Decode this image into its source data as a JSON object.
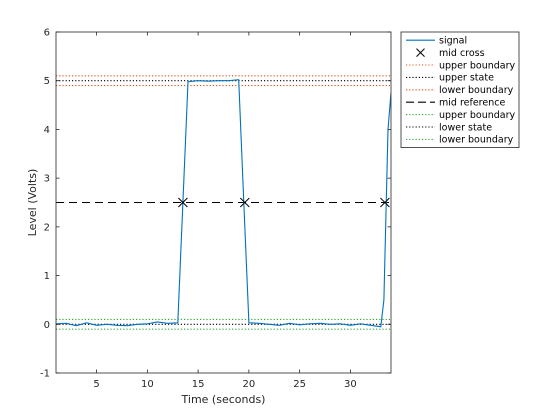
{
  "chart_data": {
    "type": "line",
    "xlabel": "Time (seconds)",
    "ylabel": "Level (Volts)",
    "xlim": [
      1,
      34
    ],
    "ylim": [
      -1,
      6
    ],
    "xticks": [
      5,
      10,
      15,
      20,
      25,
      30
    ],
    "yticks": [
      -1,
      0,
      1,
      2,
      3,
      4,
      5,
      6
    ],
    "grid": false,
    "legend_position": "outside-top-right",
    "signal": {
      "x": [
        1,
        2,
        3,
        4,
        5,
        6,
        7,
        8,
        9,
        10,
        11,
        12,
        13,
        13.5,
        14,
        15,
        16,
        17,
        18,
        19,
        19.5,
        20,
        21,
        22,
        23,
        24,
        25,
        26,
        27,
        28,
        29,
        30,
        31,
        32,
        33,
        33.3,
        33.7,
        34
      ],
      "y": [
        0.01,
        0.02,
        -0.03,
        0.03,
        -0.02,
        0.0,
        -0.02,
        -0.03,
        0.0,
        0.01,
        0.05,
        0.02,
        0.03,
        2.5,
        4.98,
        5.0,
        4.99,
        5.0,
        5.0,
        5.02,
        2.5,
        0.03,
        0.02,
        0.0,
        -0.02,
        0.02,
        -0.01,
        0.01,
        0.02,
        0.0,
        0.01,
        -0.02,
        0.01,
        -0.02,
        -0.05,
        0.5,
        4.0,
        4.75
      ]
    },
    "mid_cross": {
      "x": [
        13.5,
        19.6,
        33.4
      ],
      "y": [
        2.5,
        2.5,
        2.5
      ]
    },
    "upper_state": 5.0,
    "upper_boundaries": [
      5.1,
      4.9
    ],
    "mid_reference": 2.5,
    "lower_state": 0.0,
    "lower_boundaries": [
      0.1,
      -0.1
    ],
    "colors": {
      "signal": "#0072bd",
      "mid_cross": "#000000",
      "upper_boundary": "#d95319",
      "upper_state": "#000000",
      "mid_reference": "#000000",
      "lower_state": "#000000",
      "lower_boundary": "#33aa33"
    },
    "legend": [
      {
        "label": "signal",
        "style": "solid",
        "color": "signal"
      },
      {
        "label": "mid cross",
        "style": "marker-x",
        "color": "mid_cross"
      },
      {
        "label": "upper boundary",
        "style": "dotted",
        "color": "upper_boundary"
      },
      {
        "label": "upper state",
        "style": "dotted",
        "color": "upper_state"
      },
      {
        "label": "lower boundary",
        "style": "dotted",
        "color": "upper_boundary"
      },
      {
        "label": "mid reference",
        "style": "dashed",
        "color": "mid_reference"
      },
      {
        "label": "upper boundary",
        "style": "dotted",
        "color": "lower_boundary"
      },
      {
        "label": "lower state",
        "style": "dotted",
        "color": "lower_state"
      },
      {
        "label": "lower boundary",
        "style": "dotted",
        "color": "lower_boundary"
      }
    ]
  }
}
